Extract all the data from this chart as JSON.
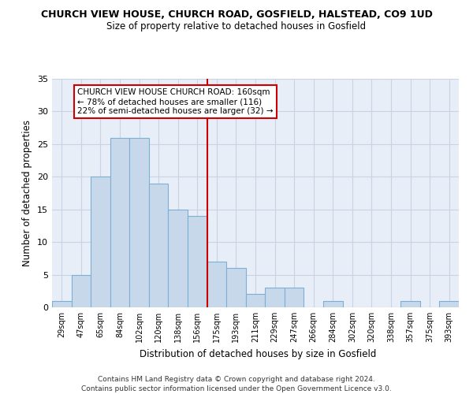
{
  "title": "CHURCH VIEW HOUSE, CHURCH ROAD, GOSFIELD, HALSTEAD, CO9 1UD",
  "subtitle": "Size of property relative to detached houses in Gosfield",
  "xlabel": "Distribution of detached houses by size in Gosfield",
  "ylabel": "Number of detached properties",
  "categories": [
    "29sqm",
    "47sqm",
    "65sqm",
    "84sqm",
    "102sqm",
    "120sqm",
    "138sqm",
    "156sqm",
    "175sqm",
    "193sqm",
    "211sqm",
    "229sqm",
    "247sqm",
    "266sqm",
    "284sqm",
    "302sqm",
    "320sqm",
    "338sqm",
    "357sqm",
    "375sqm",
    "393sqm"
  ],
  "values": [
    1,
    5,
    20,
    26,
    26,
    19,
    15,
    14,
    7,
    6,
    2,
    3,
    3,
    0,
    1,
    0,
    0,
    0,
    1,
    0,
    1
  ],
  "bar_color": "#c8d8eb",
  "bar_edgecolor": "#7bafd4",
  "ref_line_x": 7.5,
  "ref_line_label": "CHURCH VIEW HOUSE CHURCH ROAD: 160sqm",
  "ref_line_sublabel1": "← 78% of detached houses are smaller (116)",
  "ref_line_sublabel2": "22% of semi-detached houses are larger (32) →",
  "ref_line_color": "#cc0000",
  "annotation_box_color": "#cc0000",
  "ylim": [
    0,
    35
  ],
  "yticks": [
    0,
    5,
    10,
    15,
    20,
    25,
    30,
    35
  ],
  "grid_color": "#c8d4e4",
  "background_color": "#e8eef8",
  "footer1": "Contains HM Land Registry data © Crown copyright and database right 2024.",
  "footer2": "Contains public sector information licensed under the Open Government Licence v3.0."
}
